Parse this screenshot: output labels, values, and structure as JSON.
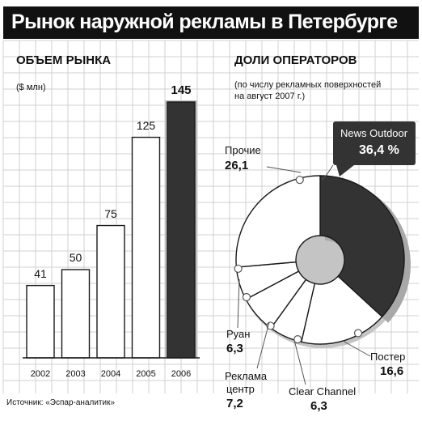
{
  "title": "Рынок наружной рекламы в Петербурге",
  "source": "Источник: «Эспар-аналитик»",
  "colors": {
    "grid": "#d0d0d0",
    "dark": "#333333",
    "light": "#ffffff",
    "stroke": "#1a1a1a"
  },
  "chart_data": [
    {
      "type": "bar",
      "title": "ОБЪЕМ РЫНКА",
      "ylabel": "($ млн)",
      "categories": [
        "2002",
        "2003",
        "2004",
        "2005",
        "2006"
      ],
      "values": [
        41,
        50,
        75,
        125,
        145
      ],
      "value_labels": [
        "41",
        "50",
        "75",
        "125",
        "145"
      ],
      "ylim": [
        0,
        145
      ],
      "highlight_index": 4,
      "grid": true
    },
    {
      "type": "pie",
      "title": "ДОЛИ ОПЕРАТОРОВ",
      "subtitle_line1": "(по числу рекламных поверхностей",
      "subtitle_line2": "на август 2007 г.)",
      "donut": true,
      "slices": [
        {
          "name": "News Outdoor",
          "value": 36.4,
          "value_label": "36,4 %",
          "highlight": true
        },
        {
          "name": "Постер",
          "value": 16.6,
          "value_label": "16,6"
        },
        {
          "name": "Clear Channel",
          "value": 6.3,
          "value_label": "6,3"
        },
        {
          "name_line1": "Реклама",
          "name_line2": "центр",
          "value": 7.2,
          "value_label": "7,2"
        },
        {
          "name": "Руан",
          "value": 6.3,
          "value_label": "6,3"
        },
        {
          "name": "Прочие",
          "value": 26.1,
          "value_label": "26,1"
        }
      ]
    }
  ]
}
